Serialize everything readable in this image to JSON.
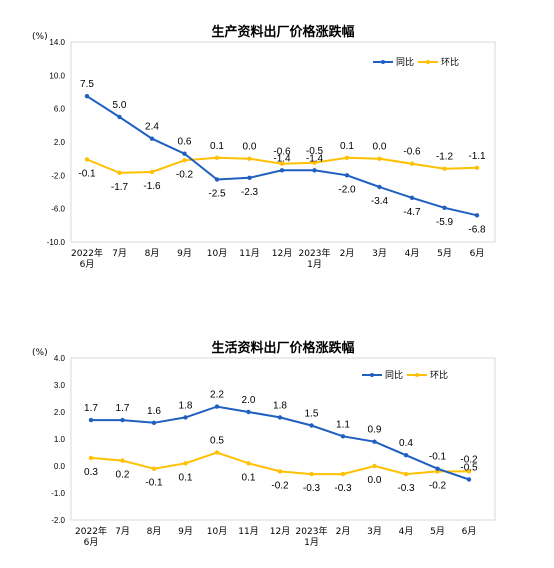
{
  "chart_data": [
    {
      "type": "line",
      "title": "生产资料出厂价格涨跌幅",
      "unit": "(%)",
      "ylim": [
        -10.0,
        14.0
      ],
      "yticks": [
        "14.0",
        "10.0",
        "6.0",
        "2.0",
        "-2.0",
        "-6.0",
        "-10.0"
      ],
      "ytick_values": [
        14,
        10,
        6,
        2,
        -2,
        -6,
        -10
      ],
      "categories": [
        "2022年\n6月",
        "7月",
        "8月",
        "9月",
        "10月",
        "11月",
        "12月",
        "2023年\n1月",
        "2月",
        "3月",
        "4月",
        "5月",
        "6月"
      ],
      "legend_position": "top-right",
      "grid": false,
      "series": [
        {
          "name": "同比",
          "color": "#1f5fbf",
          "values": [
            7.5,
            5.0,
            2.4,
            0.6,
            -2.5,
            -2.3,
            -1.4,
            -1.4,
            -2.0,
            -3.4,
            -4.7,
            -5.9,
            -6.8
          ],
          "labels": [
            "7.5",
            "5.0",
            "2.4",
            "0.6",
            "-2.5",
            "-2.3",
            "-1.4",
            "-1.4",
            "-2.0",
            "-3.4",
            "-4.7",
            "-5.9",
            "-6.8"
          ]
        },
        {
          "name": "环比",
          "color": "#ffc000",
          "values": [
            -0.1,
            -1.7,
            -1.6,
            -0.2,
            0.1,
            0.0,
            -0.6,
            -0.5,
            0.1,
            0.0,
            -0.6,
            -1.2,
            -1.1
          ],
          "labels": [
            "-0.1",
            "-1.7",
            "-1.6",
            "-0.2",
            "0.1",
            "0.0",
            "-0.6",
            "-0.5",
            "0.1",
            "0.0",
            "-0.6",
            "-1.2",
            "-1.1"
          ]
        }
      ]
    },
    {
      "type": "line",
      "title": "生活资料出厂价格涨跌幅",
      "unit": "(%)",
      "ylim": [
        -2.0,
        4.0
      ],
      "yticks": [
        "4.0",
        "3.0",
        "2.0",
        "1.0",
        "0.0",
        "-1.0",
        "-2.0"
      ],
      "ytick_values": [
        4,
        3,
        2,
        1,
        0,
        -1,
        -2
      ],
      "categories": [
        "2022年\n6月",
        "7月",
        "8月",
        "9月",
        "10月",
        "11月",
        "12月",
        "2023年\n1月",
        "2月",
        "3月",
        "4月",
        "5月",
        "6月"
      ],
      "legend_position": "top-right",
      "grid": false,
      "series": [
        {
          "name": "同比",
          "color": "#1f5fbf",
          "values": [
            1.7,
            1.7,
            1.6,
            1.8,
            2.2,
            2.0,
            1.8,
            1.5,
            1.1,
            0.9,
            0.4,
            -0.1,
            -0.5
          ],
          "labels": [
            "1.7",
            "1.7",
            "1.6",
            "1.8",
            "2.2",
            "2.0",
            "1.8",
            "1.5",
            "1.1",
            "0.9",
            "0.4",
            "-0.1",
            "-0.5"
          ]
        },
        {
          "name": "环比",
          "color": "#ffc000",
          "values": [
            0.3,
            0.2,
            -0.1,
            0.1,
            0.5,
            0.1,
            -0.2,
            -0.3,
            -0.3,
            0.0,
            -0.3,
            -0.2,
            -0.2
          ],
          "labels": [
            "0.3",
            "0.2",
            "-0.1",
            "0.1",
            "0.5",
            "0.1",
            "-0.2",
            "-0.3",
            "-0.3",
            "0.0",
            "-0.3",
            "-0.2",
            "-0.2"
          ]
        }
      ]
    }
  ]
}
